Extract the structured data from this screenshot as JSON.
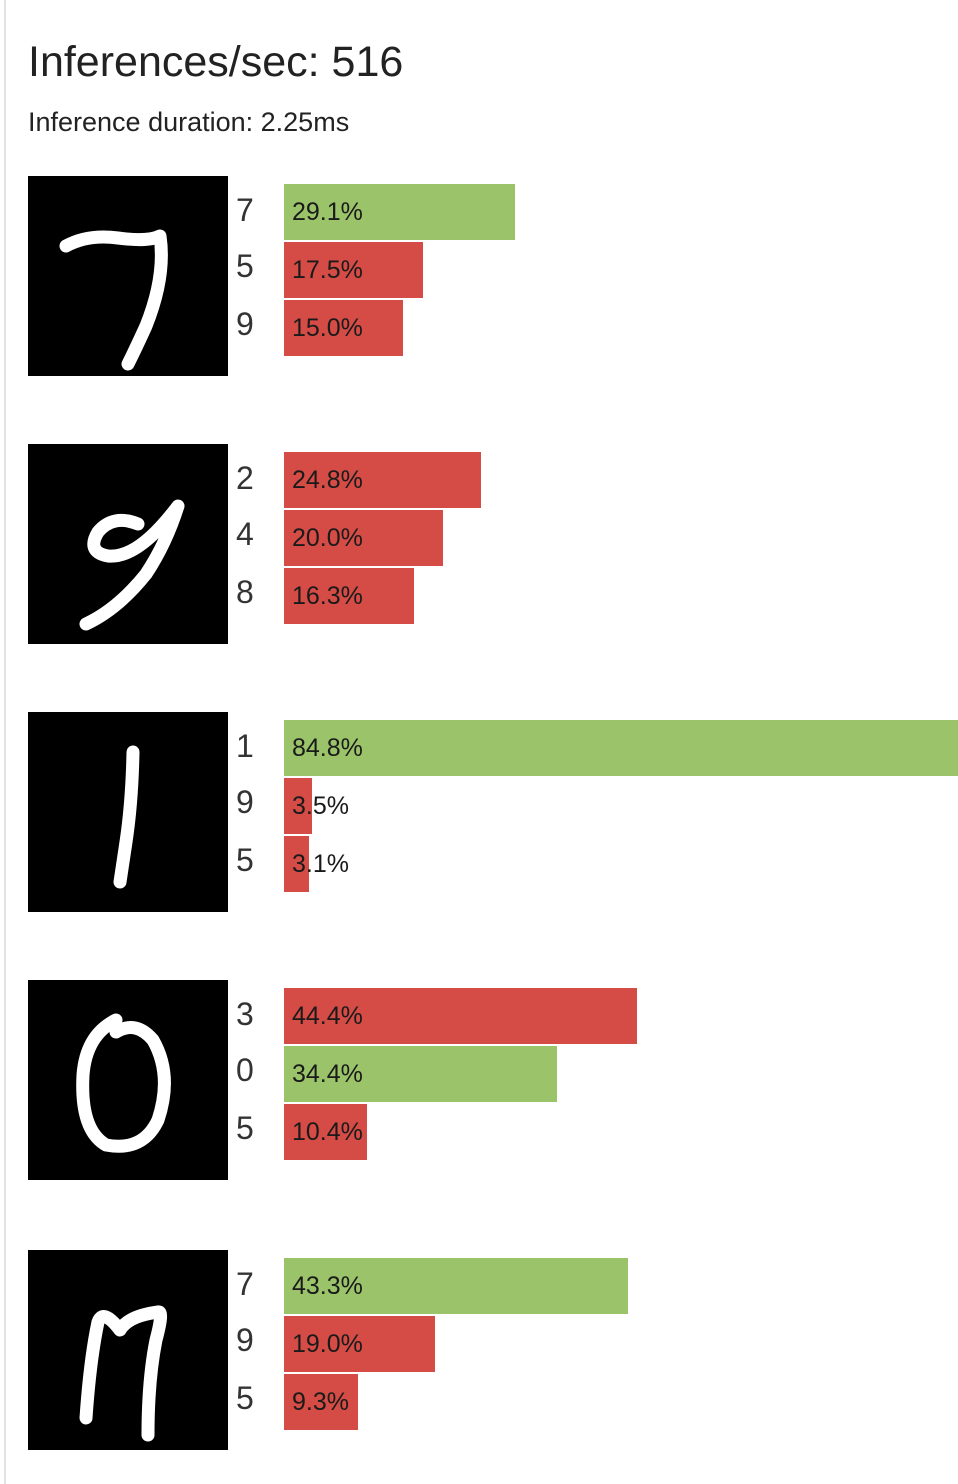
{
  "header": {
    "title": "Inferences/sec: 516",
    "duration": "Inference duration: 2.25ms"
  },
  "colors": {
    "correct": "#9bc46a",
    "incorrect": "#d44c45"
  },
  "chart_data": {
    "type": "bar",
    "orientation": "horizontal",
    "title": "Inferences/sec: 516",
    "subtitle": "Inference duration: 2.25ms",
    "xlim": [
      0,
      84.8
    ],
    "samples": [
      {
        "digit": "7",
        "predictions": [
          {
            "label": "7",
            "value": 29.1,
            "text": "29.1%",
            "correct": true
          },
          {
            "label": "5",
            "value": 17.5,
            "text": "17.5%",
            "correct": false
          },
          {
            "label": "9",
            "value": 15.0,
            "text": "15.0%",
            "correct": false
          }
        ]
      },
      {
        "digit": "9",
        "predictions": [
          {
            "label": "2",
            "value": 24.8,
            "text": "24.8%",
            "correct": false
          },
          {
            "label": "4",
            "value": 20.0,
            "text": "20.0%",
            "correct": false
          },
          {
            "label": "8",
            "value": 16.3,
            "text": "16.3%",
            "correct": false
          }
        ]
      },
      {
        "digit": "1",
        "predictions": [
          {
            "label": "1",
            "value": 84.8,
            "text": "84.8%",
            "correct": true
          },
          {
            "label": "9",
            "value": 3.5,
            "text": "3.5%",
            "correct": false
          },
          {
            "label": "5",
            "value": 3.1,
            "text": "3.1%",
            "correct": false
          }
        ]
      },
      {
        "digit": "0",
        "predictions": [
          {
            "label": "3",
            "value": 44.4,
            "text": "44.4%",
            "correct": false
          },
          {
            "label": "0",
            "value": 34.4,
            "text": "34.4%",
            "correct": true
          },
          {
            "label": "5",
            "value": 10.4,
            "text": "10.4%",
            "correct": false
          }
        ]
      },
      {
        "digit": "7",
        "predictions": [
          {
            "label": "7",
            "value": 43.3,
            "text": "43.3%",
            "correct": true
          },
          {
            "label": "9",
            "value": 19.0,
            "text": "19.0%",
            "correct": false
          },
          {
            "label": "5",
            "value": 9.3,
            "text": "9.3%",
            "correct": false
          }
        ]
      }
    ]
  }
}
